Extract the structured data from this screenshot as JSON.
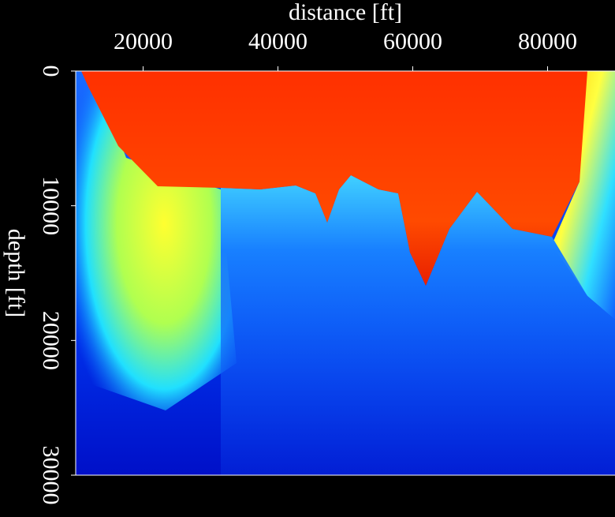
{
  "chart_data": {
    "type": "image",
    "xlabel": "distance [ft]",
    "ylabel": "depth [ft]",
    "xlim": [
      10000,
      90000
    ],
    "xticks": [
      20000,
      40000,
      60000,
      80000
    ],
    "ylim": [
      0,
      30000
    ],
    "yticks": [
      0,
      10000,
      20000,
      30000
    ]
  }
}
